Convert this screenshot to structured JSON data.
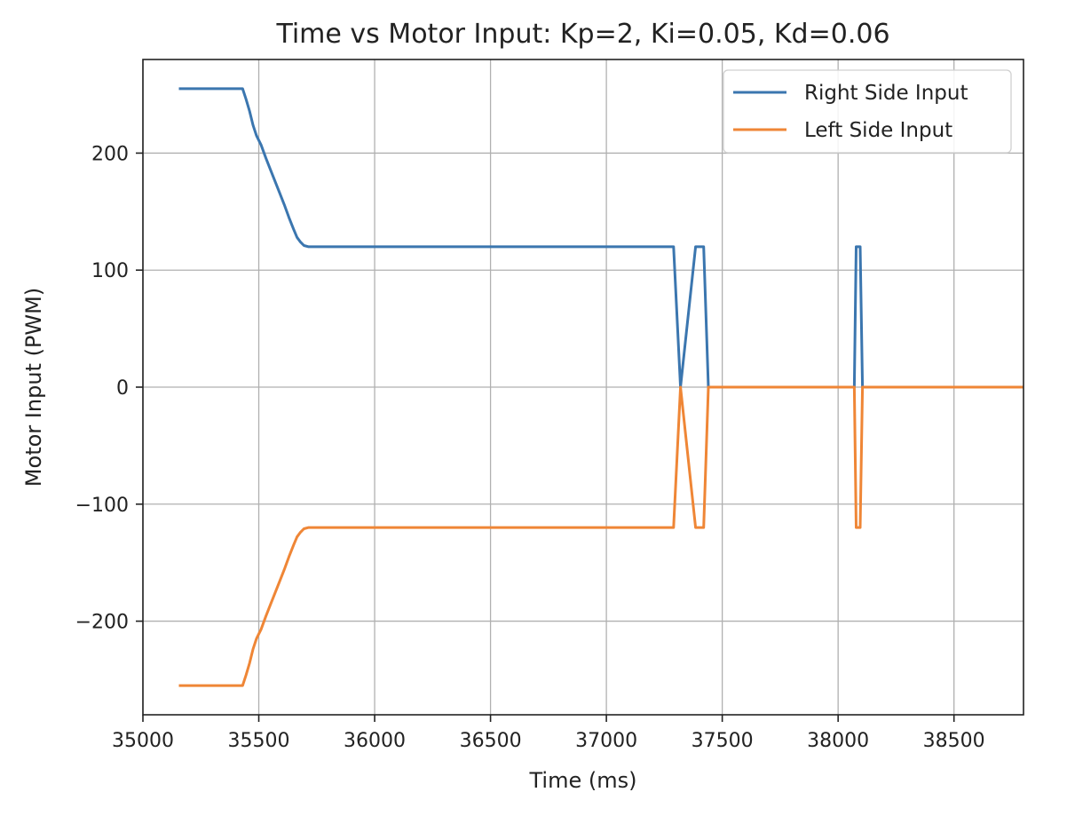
{
  "chart_data": {
    "type": "line",
    "title": "Time vs Motor Input: Kp=2, Ki=0.05, Kd=0.06",
    "xlabel": "Time (ms)",
    "ylabel": "Motor Input (PWM)",
    "xlim": [
      35000,
      38800
    ],
    "ylim": [
      -280,
      280
    ],
    "xticks": [
      35000,
      35500,
      36000,
      36500,
      37000,
      37500,
      38000,
      38500
    ],
    "xtick_labels": [
      "35000",
      "35500",
      "36000",
      "36500",
      "37000",
      "37500",
      "38000",
      "38500"
    ],
    "yticks": [
      -200,
      -100,
      0,
      100,
      200
    ],
    "ytick_labels": [
      "−200",
      "−100",
      "0",
      "100",
      "200"
    ],
    "grid": true,
    "legend_position": "top-right",
    "series": [
      {
        "name": "Right Side Input",
        "color": "#3b76af",
        "x": [
          35155,
          35430,
          35445,
          35460,
          35475,
          35490,
          35510,
          35530,
          35550,
          35570,
          35590,
          35610,
          35630,
          35650,
          35665,
          35680,
          35695,
          35715,
          37290,
          37320,
          37385,
          37388,
          37420,
          37440,
          38070,
          38078,
          38095,
          38105,
          38800
        ],
        "y": [
          255,
          255,
          246,
          236,
          224,
          215,
          207,
          196,
          186,
          176,
          166,
          156,
          145,
          135,
          128,
          124,
          121,
          120,
          120,
          0,
          120,
          120,
          120,
          0,
          0,
          120,
          120,
          0,
          0
        ]
      },
      {
        "name": "Left Side Input",
        "color": "#ef8636",
        "x": [
          35155,
          35430,
          35445,
          35460,
          35475,
          35490,
          35510,
          35530,
          35550,
          35570,
          35590,
          35610,
          35630,
          35650,
          35665,
          35680,
          35695,
          35715,
          37290,
          37320,
          37385,
          37388,
          37420,
          37440,
          38070,
          38078,
          38095,
          38105,
          38800
        ],
        "y": [
          -255,
          -255,
          -246,
          -236,
          -224,
          -215,
          -207,
          -196,
          -186,
          -176,
          -166,
          -156,
          -145,
          -135,
          -128,
          -124,
          -121,
          -120,
          -120,
          0,
          -120,
          -120,
          -120,
          0,
          0,
          -120,
          -120,
          0,
          0
        ]
      }
    ]
  }
}
